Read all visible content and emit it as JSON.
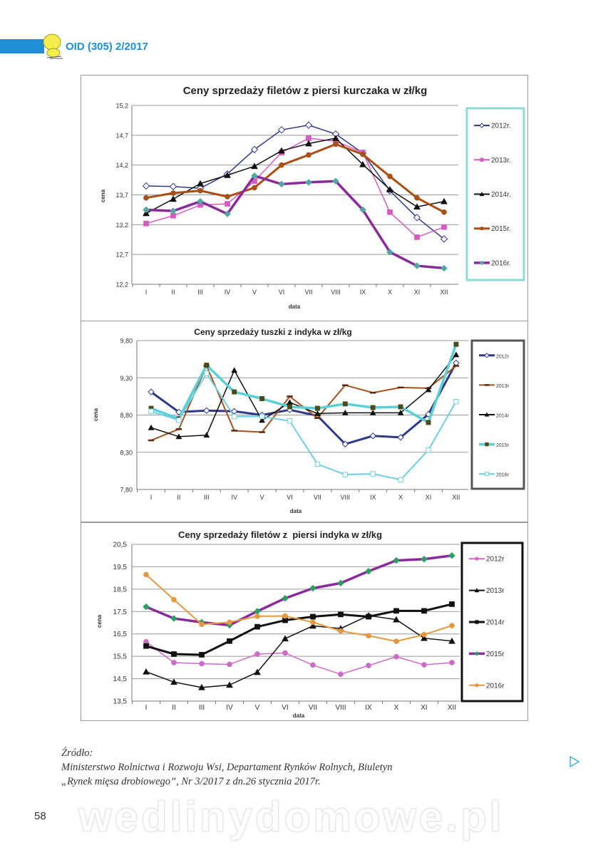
{
  "header": {
    "issue": "OID (305) 2/2017",
    "accent_color": "#1e8fd6"
  },
  "chart_data": [
    {
      "type": "line",
      "title": "Ceny sprzedaży filetów z piersi kurczaka w zł/kg",
      "xlabel": "data",
      "ylabel": "cena",
      "ylim": [
        12.2,
        15.2
      ],
      "ytick_labels": [
        "12,2",
        "12,7",
        "13,2",
        "13,7",
        "14,2",
        "14,7",
        "15,2"
      ],
      "categories": [
        "I",
        "II",
        "III",
        "IV",
        "V",
        "VI",
        "VII",
        "VIII",
        "IX",
        "X",
        "XI",
        "XII"
      ],
      "grid": true,
      "legend": "right",
      "series": [
        {
          "name": "2012r.",
          "color": "#2e3a87",
          "marker": "diamond-open",
          "marker_color": "#2e3a87",
          "values": [
            13.85,
            13.84,
            13.81,
            14.05,
            14.46,
            14.79,
            14.87,
            14.72,
            14.4,
            13.77,
            13.32,
            12.96
          ]
        },
        {
          "name": "2013r.",
          "color": "#d65bc0",
          "marker": "square",
          "marker_color": "#d65bc0",
          "values": [
            13.22,
            13.35,
            13.53,
            13.55,
            13.93,
            14.41,
            14.65,
            14.6,
            14.41,
            13.41,
            12.99,
            13.16
          ]
        },
        {
          "name": "2014r.",
          "color": "#111111",
          "marker": "triangle",
          "marker_color": "#111111",
          "values": [
            13.39,
            13.63,
            13.89,
            14.03,
            14.18,
            14.44,
            14.56,
            14.65,
            14.21,
            13.79,
            13.5,
            13.59
          ]
        },
        {
          "name": "2015r.",
          "color": "#a94e14",
          "marker": "circle",
          "marker_color": "#a94e14",
          "values": [
            13.65,
            13.73,
            13.77,
            13.67,
            13.82,
            14.2,
            14.37,
            14.55,
            14.38,
            14.01,
            13.65,
            13.41
          ]
        },
        {
          "name": "2016r.",
          "color": "#8a2a9a",
          "marker": "diamond",
          "marker_color": "#4fa9a0",
          "values": [
            13.45,
            13.43,
            13.59,
            13.38,
            14.02,
            13.88,
            13.91,
            13.93,
            13.45,
            12.74,
            12.51,
            12.47
          ]
        }
      ]
    },
    {
      "type": "line",
      "title": "Ceny sprzedaży tuszki z indyka w zł/kg",
      "xlabel": "data",
      "ylabel": "cena",
      "ylim": [
        7.8,
        9.8
      ],
      "ytick_labels": [
        "7,80",
        "8,30",
        "8,80",
        "9,30",
        "9,80"
      ],
      "categories": [
        "I",
        "II",
        "III",
        "IV",
        "V",
        "VI",
        "VII",
        "VIII",
        "IX",
        "X",
        "XI",
        "XII"
      ],
      "grid": true,
      "legend": "right",
      "series": [
        {
          "name": "2012r",
          "color": "#2e3a87",
          "marker": "diamond-open",
          "marker_color": "#2e3a87",
          "values": [
            9.11,
            8.84,
            8.86,
            8.85,
            8.8,
            8.87,
            8.79,
            8.41,
            8.52,
            8.5,
            8.81,
            9.5
          ]
        },
        {
          "name": "2013r",
          "color": "#a5531f",
          "marker": "dash",
          "marker_color": "#5a2a10",
          "values": [
            8.46,
            8.61,
            9.46,
            8.59,
            8.57,
            9.05,
            8.76,
            9.2,
            9.1,
            9.17,
            9.16,
            9.46
          ]
        },
        {
          "name": "2014r",
          "color": "#111111",
          "marker": "triangle",
          "marker_color": "#111111",
          "values": [
            8.63,
            8.51,
            8.53,
            9.4,
            8.73,
            8.97,
            8.82,
            8.83,
            8.83,
            8.83,
            9.14,
            9.61
          ]
        },
        {
          "name": "2015r",
          "color": "#5bcfd6",
          "marker": "square",
          "marker_color": "#4a4a1a",
          "values": [
            8.89,
            8.75,
            9.47,
            9.11,
            9.02,
            8.91,
            8.89,
            8.95,
            8.9,
            8.91,
            8.7,
            9.75
          ]
        },
        {
          "name": "2016r",
          "color": "#6fcfe0",
          "marker": "square-open",
          "marker_color": "#6fcfe0",
          "values": [
            8.85,
            8.73,
            9.36,
            8.78,
            8.78,
            8.72,
            8.14,
            8.0,
            8.01,
            7.93,
            8.33,
            8.98
          ]
        }
      ]
    },
    {
      "type": "line",
      "title": "Ceny sprzedaży filetów z  piersi indyka w zł/kg",
      "xlabel": "data",
      "ylabel": "cena",
      "ylim": [
        13.5,
        20.5
      ],
      "ytick_labels": [
        "13,5",
        "14,5",
        "15,5",
        "16,5",
        "17,5",
        "18,5",
        "19,5",
        "20,5"
      ],
      "categories": [
        "I",
        "II",
        "III",
        "IV",
        "V",
        "VI",
        "VII",
        "VIII",
        "IX",
        "X",
        "XI",
        "XII"
      ],
      "grid": true,
      "legend": "right",
      "series": [
        {
          "name": "2012r",
          "color": "#cc6ac8",
          "marker": "circle",
          "marker_color": "#cc6ac8",
          "values": [
            16.15,
            15.22,
            15.17,
            15.14,
            15.6,
            15.65,
            15.11,
            14.7,
            15.09,
            15.48,
            15.12,
            15.22
          ]
        },
        {
          "name": "2013r",
          "color": "#111111",
          "marker": "triangle",
          "marker_color": "#111111",
          "values": [
            14.81,
            14.35,
            14.11,
            14.22,
            14.79,
            16.29,
            16.86,
            16.74,
            17.32,
            17.14,
            16.31,
            16.18
          ]
        },
        {
          "name": "2014r",
          "color": "#111111",
          "marker": "square",
          "marker_color": "#111111",
          "values": [
            15.96,
            15.6,
            15.57,
            16.18,
            16.82,
            17.11,
            17.27,
            17.37,
            17.27,
            17.53,
            17.53,
            17.83
          ]
        },
        {
          "name": "2015r",
          "color": "#8b2a9c",
          "marker": "diamond",
          "marker_color": "#2aa061",
          "values": [
            17.71,
            17.19,
            17.02,
            16.89,
            17.51,
            18.09,
            18.54,
            18.77,
            19.3,
            19.78,
            19.84,
            20.0
          ]
        },
        {
          "name": "2016r",
          "color": "#e5993f",
          "marker": "circle",
          "marker_color": "#e5993f",
          "values": [
            19.15,
            18.03,
            16.93,
            17.02,
            17.29,
            17.3,
            17.02,
            16.63,
            16.42,
            16.17,
            16.47,
            16.87
          ]
        }
      ]
    }
  ],
  "footer": {
    "source_label": "Źródło:",
    "source_line1": "Ministerstwo Rolnictwa i Rozwoju Wsi, Departament Rynków Rolnych, Biuletyn",
    "source_line2": "„Rynek mięsa drobiowego”, Nr 3/2017 z dn.26 stycznia 2017r.",
    "page_number": "58",
    "watermark": "wedlinydomowe.pl",
    "next_icon": "play-triangle-icon"
  }
}
